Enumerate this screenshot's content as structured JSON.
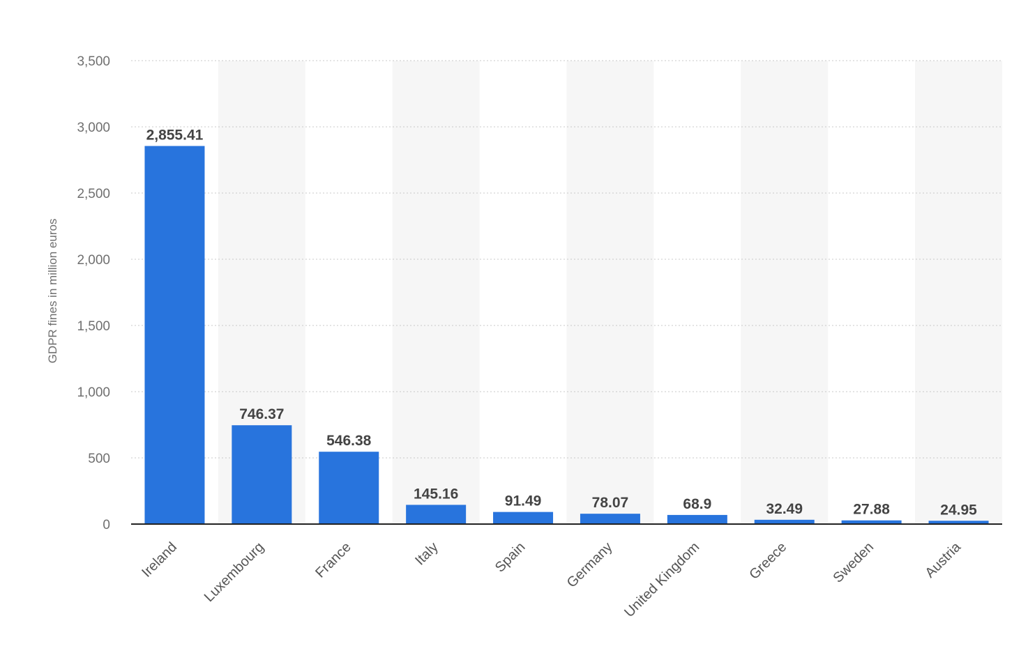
{
  "chart_data": {
    "type": "bar",
    "title": "",
    "xlabel": "",
    "ylabel": "GDPR fines in million euros",
    "categories": [
      "Ireland",
      "Luxembourg",
      "France",
      "Italy",
      "Spain",
      "Germany",
      "United Kingdom",
      "Greece",
      "Sweden",
      "Austria"
    ],
    "values": [
      2855.41,
      746.37,
      546.38,
      145.16,
      91.49,
      78.07,
      68.9,
      32.49,
      27.88,
      24.95
    ],
    "data_labels": [
      "2,855.41",
      "746.37",
      "546.38",
      "145.16",
      "91.49",
      "78.07",
      "68.9",
      "32.49",
      "27.88",
      "24.95"
    ],
    "yticks": [
      0,
      500,
      1000,
      1500,
      2000,
      2500,
      3000,
      3500
    ],
    "ytick_labels": [
      "0",
      "500",
      "1,000",
      "1,500",
      "2,000",
      "2,500",
      "3,000",
      "3,500"
    ],
    "ylim": [
      0,
      3500
    ],
    "grid": true,
    "legend": "none",
    "colors": {
      "bar": "#2874dd",
      "band": "#f6f6f6",
      "grid": "#c8c8c8",
      "axis": "#222222"
    }
  }
}
